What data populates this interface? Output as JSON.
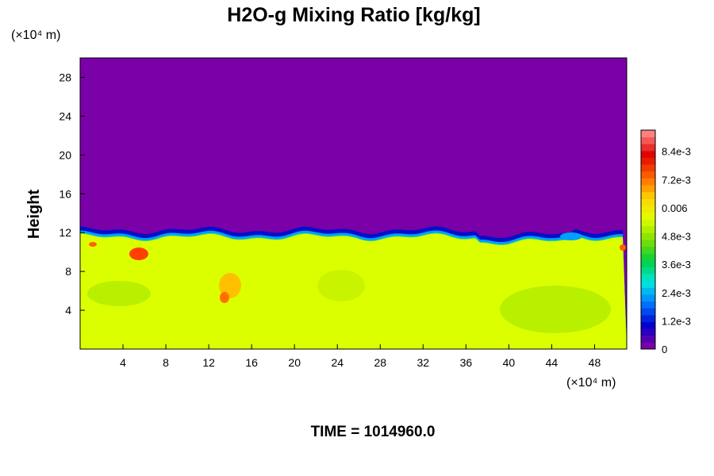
{
  "chart_data": {
    "type": "heatmap",
    "title": "H2O-g Mixing Ratio [kg/kg]",
    "ylabel": "Height",
    "xlabel": "",
    "x_unit": "(×10⁴ m)",
    "y_unit": "(×10⁴ m)",
    "x_ticks": [
      4,
      8,
      12,
      16,
      20,
      24,
      28,
      32,
      36,
      40,
      44,
      48
    ],
    "y_ticks": [
      4,
      8,
      12,
      16,
      20,
      24,
      28
    ],
    "xlim": [
      0,
      51
    ],
    "ylim": [
      0,
      30
    ],
    "colorbar": {
      "labels": [
        "0",
        "1.2e-3",
        "2.4e-3",
        "3.6e-3",
        "4.8e-3",
        "0.006",
        "7.2e-3",
        "8.4e-3"
      ],
      "values": [
        0,
        0.0012,
        0.0024,
        0.0036,
        0.0048,
        0.006,
        0.0072,
        0.0084
      ],
      "vmin": 0,
      "vmax": 0.0093,
      "colors": [
        "#7a00a8",
        "#0000d0",
        "#0078ff",
        "#00e8e0",
        "#00d040",
        "#80e000",
        "#e0ff00",
        "#ffd000",
        "#ff6000",
        "#e00000",
        "#ff8080"
      ]
    },
    "field": {
      "boundary_height": 12,
      "upper_value": 0,
      "lower_value": 0.0066,
      "lower_color": "#dcff00",
      "upper_color": "#7a00a8"
    }
  },
  "time_label": "TIME = 1014960.0"
}
